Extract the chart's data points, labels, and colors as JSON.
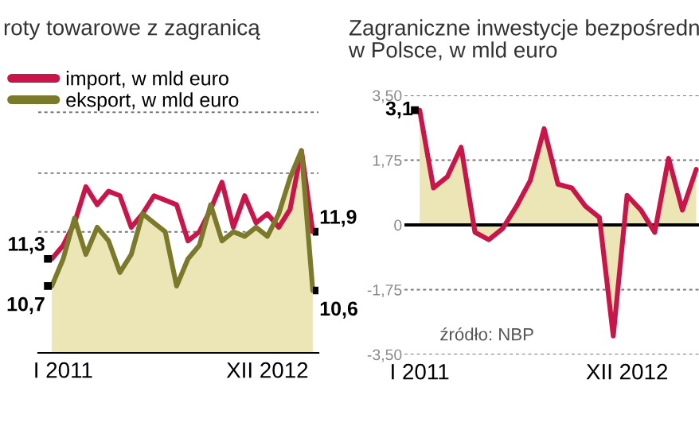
{
  "chart_data": [
    {
      "type": "area",
      "title": "roty towarowe z zagranicą",
      "categories": [
        null,
        "I 2011",
        null,
        null,
        null,
        null,
        null,
        null,
        null,
        null,
        null,
        null,
        null,
        null,
        null,
        null,
        null,
        null,
        null,
        "XII 2012",
        null,
        null,
        null,
        null
      ],
      "series": [
        {
          "name": "import, w mld euro",
          "color": "#c8164a",
          "type": "line",
          "values": [
            11.3,
            11.6,
            12.1,
            12.9,
            12.5,
            12.8,
            12.7,
            12.0,
            12.3,
            12.7,
            12.6,
            12.5,
            11.7,
            11.9,
            12.4,
            13.0,
            12.0,
            12.7,
            12.1,
            12.3,
            12.0,
            12.4,
            13.7,
            11.9
          ],
          "value_labels": [
            "11,3",
            null,
            null,
            null,
            null,
            null,
            null,
            null,
            null,
            null,
            null,
            null,
            null,
            null,
            null,
            null,
            null,
            null,
            null,
            null,
            null,
            null,
            null,
            "11,9"
          ]
        },
        {
          "name": "eksport, w mld euro",
          "color": "#7b7a2c",
          "type": "area",
          "values": [
            10.7,
            11.3,
            12.2,
            11.4,
            12.0,
            11.7,
            11.0,
            11.4,
            12.3,
            12.1,
            11.9,
            10.7,
            11.3,
            11.6,
            12.5,
            11.7,
            11.9,
            11.8,
            12.0,
            11.8,
            12.3,
            13.1,
            13.7,
            10.6
          ],
          "value_labels": [
            "10,7",
            null,
            null,
            null,
            null,
            null,
            null,
            null,
            null,
            null,
            null,
            null,
            null,
            null,
            null,
            null,
            null,
            null,
            null,
            null,
            null,
            null,
            null,
            "10,6"
          ]
        }
      ],
      "ref_lines": [
        {
          "axis": "y",
          "value": 11.9,
          "color": "#777777",
          "line_style": "dashed"
        },
        {
          "axis": "y",
          "value": 13.2,
          "color": "#777777",
          "line_style": "dashed"
        },
        {
          "axis": "y",
          "value": 14.55,
          "color": "#777777",
          "line_style": "dashed"
        }
      ],
      "tick_labels": "x",
      "legend": "top left"
    },
    {
      "type": "area",
      "title": "Zagraniczne inwestycje bezpośredn\nw Polsce, w mld euro",
      "categories": [
        "I 2011",
        null,
        null,
        null,
        null,
        null,
        null,
        null,
        null,
        null,
        null,
        null,
        null,
        null,
        null,
        "XII 2012",
        null,
        null,
        null,
        null,
        null
      ],
      "series": [
        {
          "color": "#c8164a",
          "values": [
            3.1,
            1.0,
            1.3,
            2.1,
            -0.2,
            -0.4,
            -0.1,
            0.5,
            1.2,
            2.6,
            1.1,
            1.0,
            0.5,
            0.2,
            -3.0,
            0.8,
            0.4,
            -0.2,
            1.8,
            0.4,
            1.5
          ],
          "value_labels": [
            "3,1",
            null,
            null,
            null,
            null,
            null,
            null,
            null,
            null,
            null,
            null,
            null,
            null,
            null,
            null,
            null,
            null,
            null,
            null,
            null,
            null
          ]
        }
      ],
      "ylim": [
        -3.5,
        3.5
      ],
      "yticks": [
        {
          "value": -3.5,
          "label": "-3,50"
        },
        {
          "value": -1.75,
          "label": "-1,75"
        },
        0,
        {
          "value": 1.75,
          "label": "1,75"
        },
        {
          "value": 3.5,
          "label": "3,50"
        }
      ],
      "ref_lines": [
        {
          "axis": "y",
          "value": 0,
          "color": "#000000"
        }
      ],
      "annotations": [
        "źródło: NBP"
      ],
      "grid": "y"
    }
  ]
}
